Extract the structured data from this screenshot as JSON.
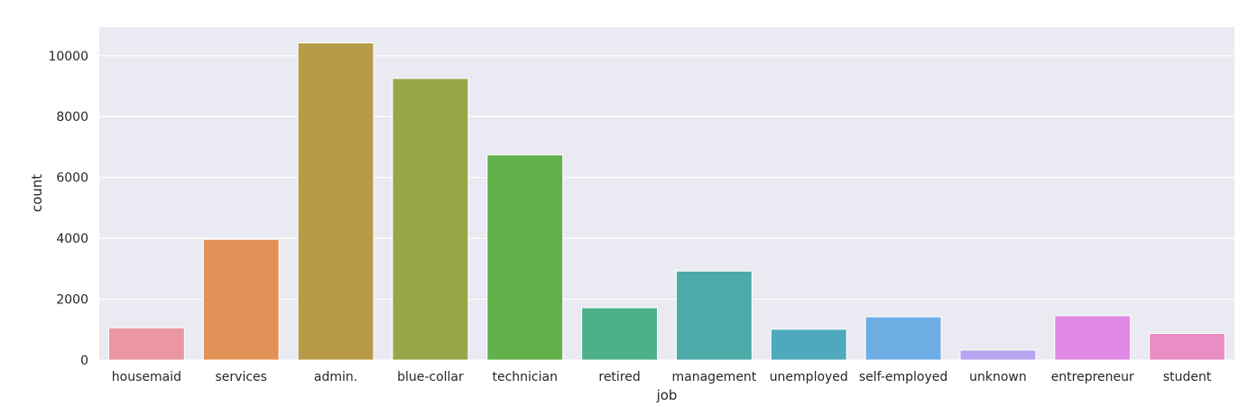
{
  "chart_data": {
    "type": "bar",
    "xlabel": "job",
    "ylabel": "count",
    "categories": [
      "housemaid",
      "services",
      "admin.",
      "blue-collar",
      "technician",
      "retired",
      "management",
      "unemployed",
      "self-employed",
      "unknown",
      "entrepreneur",
      "student"
    ],
    "values": [
      1060,
      3969,
      10422,
      9254,
      6743,
      1720,
      2924,
      1014,
      1421,
      330,
      1456,
      875
    ],
    "colors": [
      "#ea96a3",
      "#e39257",
      "#b79b49",
      "#98a548",
      "#61b04a",
      "#4bb088",
      "#4daaa8",
      "#4fa9bd",
      "#6eaee4",
      "#b8a5ef",
      "#e08ae6",
      "#e98ec5"
    ],
    "yticks": [
      0,
      2000,
      4000,
      6000,
      8000,
      10000
    ],
    "ylim": [
      0,
      10943
    ],
    "grid": true,
    "background": "#eaeaf2"
  }
}
